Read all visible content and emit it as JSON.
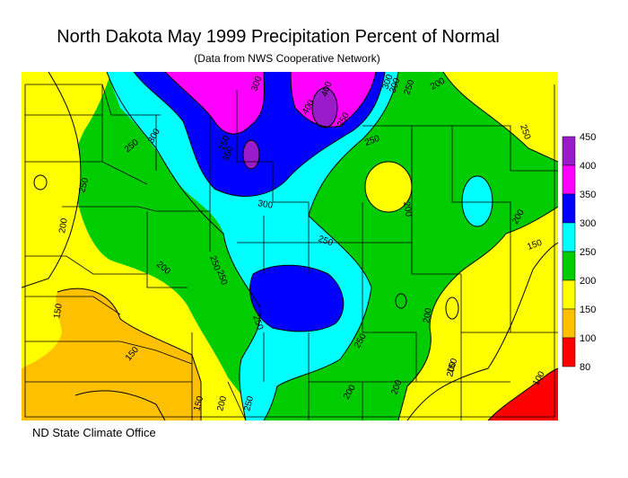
{
  "title": "North Dakota May 1999 Precipitation Percent of Normal",
  "subtitle": "(Data from NWS Cooperative Network)",
  "footer": "ND State Climate Office",
  "legend": {
    "bins": [
      {
        "value": "450",
        "color": "#9a1bc9"
      },
      {
        "value": "400",
        "color": "#ff00ff"
      },
      {
        "value": "350",
        "color": "#0000ff"
      },
      {
        "value": "300",
        "color": "#00ffff"
      },
      {
        "value": "250",
        "color": "#00cc00"
      },
      {
        "value": "200",
        "color": "#ffff00"
      },
      {
        "value": "150",
        "color": "#ffc000"
      },
      {
        "value": "100",
        "color": "#ff0000"
      },
      {
        "value": "80",
        "color": null
      }
    ]
  },
  "contour_labels": [
    "300",
    "300",
    "250",
    "200",
    "400",
    "350",
    "250",
    "250",
    "300",
    "250",
    "300",
    "200",
    "200",
    "250",
    "250",
    "200",
    "250",
    "250",
    "200",
    "150",
    "150",
    "200",
    "200",
    "250",
    "150",
    "250",
    "150",
    "200",
    "200",
    "150",
    "100",
    "200",
    "250",
    "350",
    "400",
    "300",
    "250"
  ]
}
